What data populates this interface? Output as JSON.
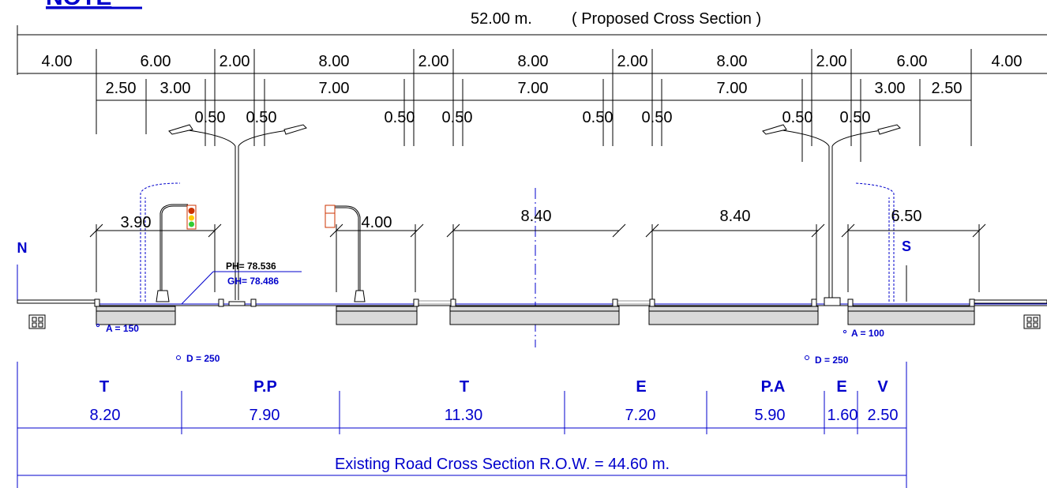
{
  "header": {
    "title_fragment": "NOTE",
    "total_width": "52.00 m.",
    "section_label": "( Proposed Cross Section )"
  },
  "dims_row1": [
    "4.00",
    "6.00",
    "2.00",
    "8.00",
    "2.00",
    "8.00",
    "2.00",
    "8.00",
    "2.00",
    "6.00",
    "4.00"
  ],
  "dims_row2": [
    "2.50",
    "3.00",
    "7.00",
    "7.00",
    "7.00",
    "3.00",
    "2.50"
  ],
  "dims_row3": [
    "0.50",
    "0.50",
    "0.50",
    "0.50",
    "0.50",
    "0.50",
    "0.50",
    "0.50"
  ],
  "dims_mid": [
    "3.90",
    "4.00",
    "8.40",
    "8.40",
    "6.50"
  ],
  "directions": {
    "north": "N",
    "south": "S"
  },
  "levels": {
    "ph": "PH= 78.536",
    "gh": "GH= 78.486"
  },
  "pipes": {
    "left_a": "A = 150",
    "left_d": "D = 250",
    "right_a": "A = 100",
    "right_d": "D = 250"
  },
  "existing": {
    "codes": [
      "T",
      "P.P",
      "T",
      "E",
      "P.A",
      "E",
      "V"
    ],
    "widths": [
      "8.20",
      "7.90",
      "11.30",
      "7.20",
      "5.90",
      "1.60",
      "2.50"
    ],
    "row_label": "Existing Road Cross Section R.O.W. = 44.60 m."
  },
  "colors": {
    "line": "#000000",
    "blue": "#0000cc",
    "slab": "#d9d9d9",
    "signal_red": "#cc3300",
    "signal_yellow": "#ffcc00",
    "signal_green": "#33cc33"
  }
}
